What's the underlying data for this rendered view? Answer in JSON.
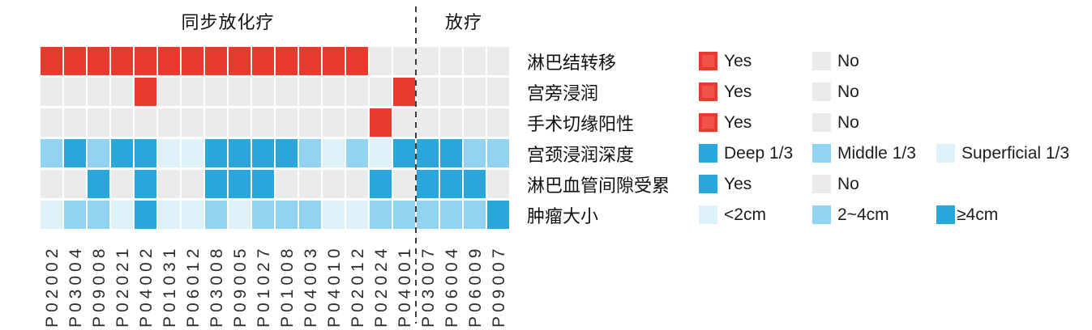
{
  "chart_data": {
    "type": "heatmap",
    "groups": [
      {
        "label": "同步放化疗",
        "columns": 16
      },
      {
        "label": "放疗",
        "columns": 4
      }
    ],
    "patients": [
      "P02002",
      "P03004",
      "P09008",
      "P02021",
      "P04002",
      "P01031",
      "P06012",
      "P03008",
      "P09005",
      "P01027",
      "P01008",
      "P04003",
      "P04010",
      "P02012",
      "P02024",
      "P04001",
      "P03007",
      "P06004",
      "P06009",
      "P09007"
    ],
    "rows": [
      {
        "label": "淋巴结转移",
        "palette": "red_yes_no",
        "values": [
          "Y",
          "Y",
          "Y",
          "Y",
          "Y",
          "Y",
          "Y",
          "Y",
          "Y",
          "Y",
          "Y",
          "Y",
          "Y",
          "Y",
          "N",
          "N",
          "N",
          "N",
          "N",
          "N"
        ]
      },
      {
        "label": "宫旁浸润",
        "palette": "red_yes_no",
        "values": [
          "N",
          "N",
          "N",
          "N",
          "Y",
          "N",
          "N",
          "N",
          "N",
          "N",
          "N",
          "N",
          "N",
          "N",
          "N",
          "Y",
          "N",
          "N",
          "N",
          "N"
        ]
      },
      {
        "label": "手术切缘阳性",
        "palette": "red_yes_no",
        "values": [
          "N",
          "N",
          "N",
          "N",
          "N",
          "N",
          "N",
          "N",
          "N",
          "N",
          "N",
          "N",
          "N",
          "N",
          "Y",
          "N",
          "N",
          "N",
          "N",
          "N"
        ]
      },
      {
        "label": "宫颈浸润深度",
        "palette": "invasion_depth",
        "values": [
          "M",
          "D",
          "M",
          "D",
          "D",
          "S",
          "S",
          "D",
          "D",
          "D",
          "D",
          "M",
          "S",
          "M",
          "S",
          "D",
          "D",
          "D",
          "M",
          "M"
        ]
      },
      {
        "label": "淋巴血管间隙受累",
        "palette": "blue_yes_no",
        "values": [
          "N",
          "N",
          "Y",
          "N",
          "Y",
          "N",
          "N",
          "Y",
          "Y",
          "Y",
          "N",
          "N",
          "N",
          "N",
          "Y",
          "N",
          "Y",
          "Y",
          "Y",
          "N"
        ]
      },
      {
        "label": "肿瘤大小",
        "palette": "tumor_size",
        "values": [
          "S",
          "M",
          "M",
          "S",
          "D",
          "S",
          "S",
          "M",
          "S",
          "M",
          "M",
          "M",
          "S",
          "S",
          "M",
          "M",
          "M",
          "M",
          "M",
          "D"
        ]
      }
    ],
    "palettes": {
      "red_yes_no": {
        "Y": "red",
        "N": "gray"
      },
      "blue_yes_no": {
        "Y": "deep_blue",
        "N": "gray"
      },
      "invasion_depth": {
        "D": "deep_blue",
        "M": "middle_blue",
        "S": "superficial_blue"
      },
      "tumor_size": {
        "D": "deep_blue",
        "M": "middle_blue",
        "S": "superficial_blue"
      }
    },
    "legend_rows": [
      [
        {
          "swatch": "red",
          "framed": true,
          "label": "Yes"
        },
        {
          "swatch": "gray",
          "label": "No"
        }
      ],
      [
        {
          "swatch": "red",
          "framed": true,
          "label": "Yes"
        },
        {
          "swatch": "gray",
          "label": "No"
        }
      ],
      [
        {
          "swatch": "red",
          "framed": true,
          "label": "Yes"
        },
        {
          "swatch": "gray",
          "label": "No"
        }
      ],
      [
        {
          "swatch": "deep_blue",
          "label": "Deep 1/3"
        },
        {
          "swatch": "middle_blue",
          "label": "Middle 1/3"
        },
        {
          "swatch": "superficial_blue",
          "label": "Superficial 1/3"
        }
      ],
      [
        {
          "swatch": "deep_blue",
          "label": "Yes"
        },
        {
          "swatch": "gray",
          "label": "No"
        }
      ],
      [
        {
          "swatch": "superficial_blue",
          "label": "<2cm"
        },
        {
          "swatch": "middle_blue",
          "label": "2~4cm"
        },
        {
          "swatch": "deep_blue",
          "tight": true,
          "label": "≥4cm"
        }
      ]
    ]
  },
  "colors": {
    "red": "#e73b2f",
    "red_fill": "#ef5349",
    "gray": "#ebebeb",
    "deep_blue": "#29a7db",
    "middle_blue": "#92d3ef",
    "superficial_blue": "#def0f8"
  }
}
